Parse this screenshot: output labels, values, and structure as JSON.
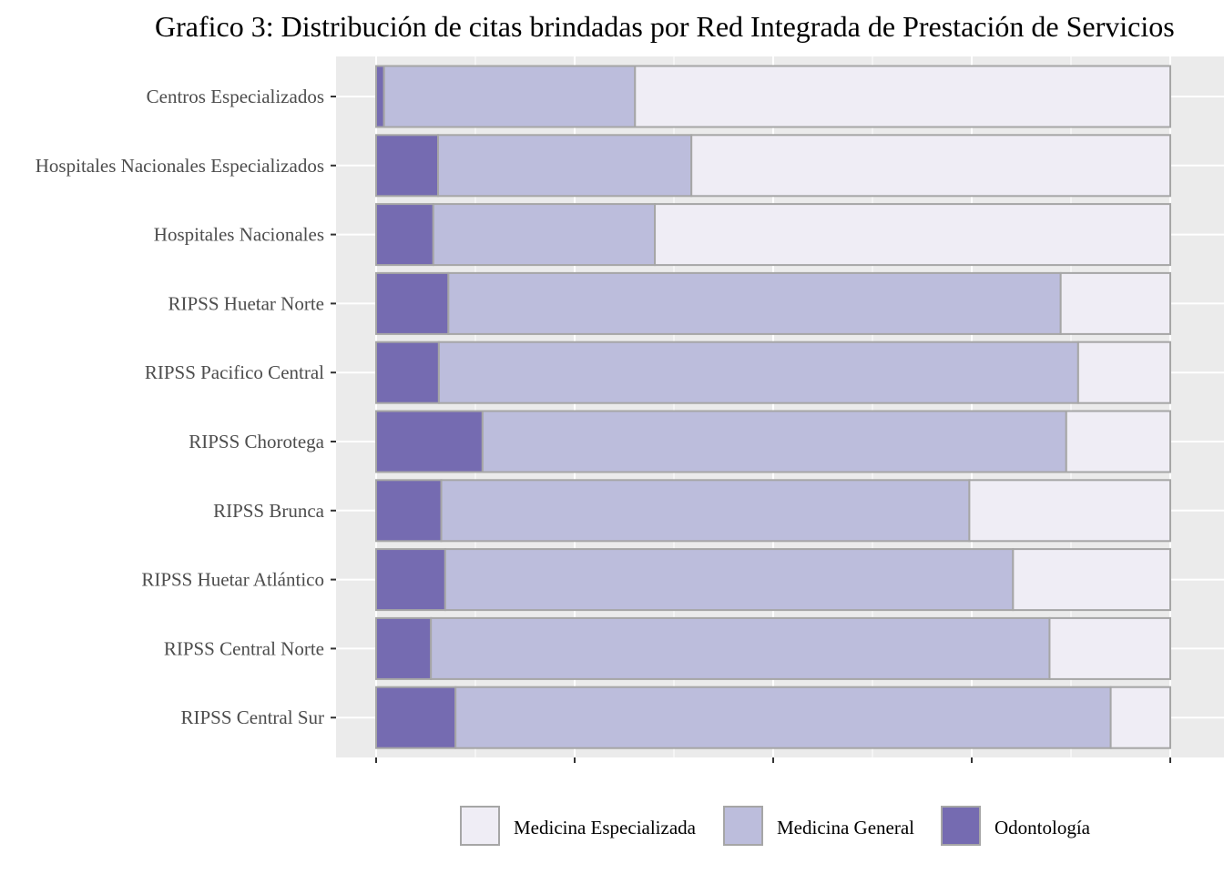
{
  "chart_data": {
    "type": "bar",
    "orientation": "horizontal",
    "stacked": true,
    "normalized": true,
    "title": "Grafico 3: Distribución de citas brindadas por Red Integrada de Prestación de Servicios",
    "categories": [
      "Centros Especializados",
      "Hospitales Nacionales Especializados",
      "Hospitales Nacionales",
      "RIPSS Huetar Norte",
      "RIPSS Pacifico Central",
      "RIPSS Chorotega",
      "RIPSS Brunca",
      "RIPSS Huetar Atlántico",
      "RIPSS Central Norte",
      "RIPSS Central Sur"
    ],
    "series": [
      {
        "name": "Odontología",
        "color": "#756bb1",
        "values": [
          0.01,
          0.078,
          0.072,
          0.091,
          0.079,
          0.134,
          0.082,
          0.087,
          0.069,
          0.1
        ]
      },
      {
        "name": "Medicina General",
        "color": "#bcbddc",
        "values": [
          0.316,
          0.319,
          0.279,
          0.771,
          0.805,
          0.735,
          0.665,
          0.715,
          0.779,
          0.825
        ]
      },
      {
        "name": "Medicina Especializada",
        "color": "#efedf5",
        "values": [
          0.674,
          0.603,
          0.649,
          0.138,
          0.116,
          0.131,
          0.253,
          0.198,
          0.152,
          0.075
        ]
      }
    ],
    "xlim": [
      0,
      1
    ],
    "xlabel": "",
    "ylabel": "",
    "grid": true,
    "legend_position": "bottom",
    "legend_order": [
      "Medicina Especializada",
      "Medicina General",
      "Odontología"
    ],
    "panel_background": "#ebebeb",
    "bar_outline": "#a6a6a6"
  }
}
